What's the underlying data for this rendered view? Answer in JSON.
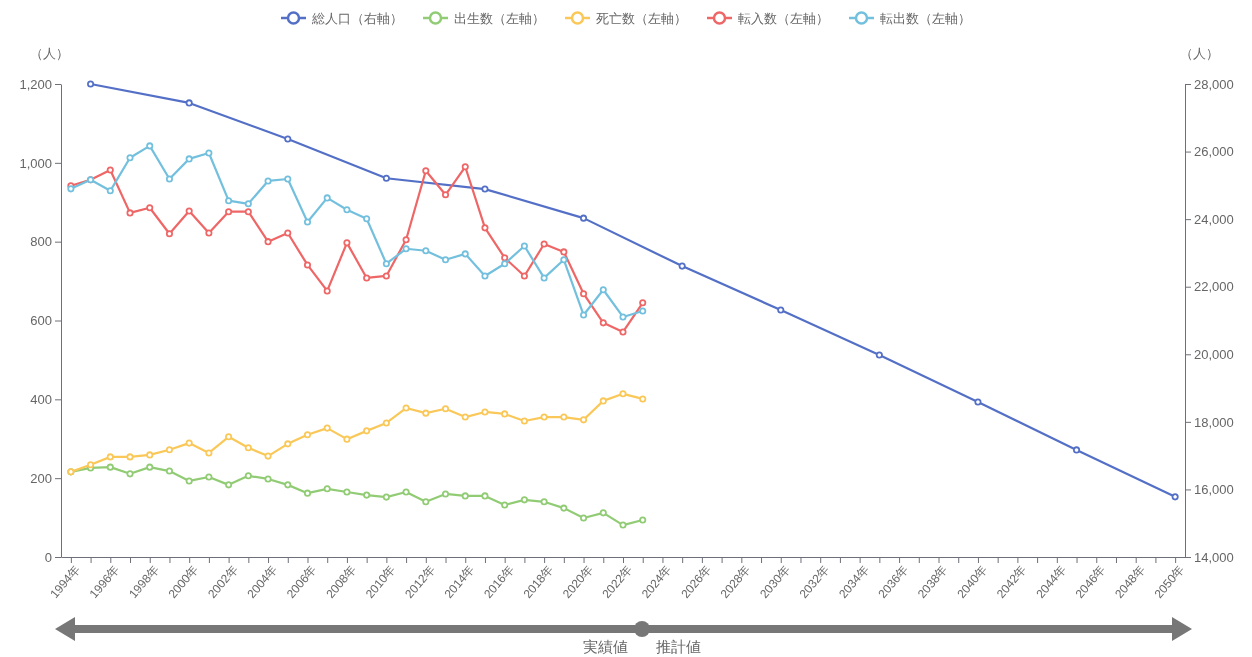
{
  "chart_data": {
    "type": "line",
    "ylabel": "（人）",
    "y2label": "（人）",
    "legend": "top",
    "marker": "circle",
    "line_style": "solid",
    "grid": false,
    "xlim": [
      1993.5,
      2050.5
    ],
    "xticks": [
      {
        "value": 1994,
        "label": "1994年"
      },
      {
        "value": 1995,
        "label": null
      },
      {
        "value": 1996,
        "label": "1996年"
      },
      {
        "value": 1997,
        "label": null
      },
      {
        "value": 1998,
        "label": "1998年"
      },
      {
        "value": 1999,
        "label": null
      },
      {
        "value": 2000,
        "label": "2000年"
      },
      {
        "value": 2001,
        "label": null
      },
      {
        "value": 2002,
        "label": "2002年"
      },
      {
        "value": 2003,
        "label": null
      },
      {
        "value": 2004,
        "label": "2004年"
      },
      {
        "value": 2005,
        "label": null
      },
      {
        "value": 2006,
        "label": "2006年"
      },
      {
        "value": 2007,
        "label": null
      },
      {
        "value": 2008,
        "label": "2008年"
      },
      {
        "value": 2009,
        "label": null
      },
      {
        "value": 2010,
        "label": "2010年"
      },
      {
        "value": 2011,
        "label": null
      },
      {
        "value": 2012,
        "label": "2012年"
      },
      {
        "value": 2013,
        "label": null
      },
      {
        "value": 2014,
        "label": "2014年"
      },
      {
        "value": 2015,
        "label": null
      },
      {
        "value": 2016,
        "label": "2016年"
      },
      {
        "value": 2017,
        "label": null
      },
      {
        "value": 2018,
        "label": "2018年"
      },
      {
        "value": 2019,
        "label": null
      },
      {
        "value": 2020,
        "label": "2020年"
      },
      {
        "value": 2021,
        "label": null
      },
      {
        "value": 2022,
        "label": "2022年"
      },
      {
        "value": 2023,
        "label": null
      },
      {
        "value": 2024,
        "label": "2024年"
      },
      {
        "value": 2025,
        "label": null
      },
      {
        "value": 2026,
        "label": "2026年"
      },
      {
        "value": 2027,
        "label": null
      },
      {
        "value": 2028,
        "label": "2028年"
      },
      {
        "value": 2029,
        "label": null
      },
      {
        "value": 2030,
        "label": "2030年"
      },
      {
        "value": 2031,
        "label": null
      },
      {
        "value": 2032,
        "label": "2032年"
      },
      {
        "value": 2033,
        "label": null
      },
      {
        "value": 2034,
        "label": "2034年"
      },
      {
        "value": 2035,
        "label": null
      },
      {
        "value": 2036,
        "label": "2036年"
      },
      {
        "value": 2037,
        "label": null
      },
      {
        "value": 2038,
        "label": "2038年"
      },
      {
        "value": 2039,
        "label": null
      },
      {
        "value": 2040,
        "label": "2040年"
      },
      {
        "value": 2041,
        "label": null
      },
      {
        "value": 2042,
        "label": "2042年"
      },
      {
        "value": 2043,
        "label": null
      },
      {
        "value": 2044,
        "label": "2044年"
      },
      {
        "value": 2045,
        "label": null
      },
      {
        "value": 2046,
        "label": "2046年"
      },
      {
        "value": 2047,
        "label": null
      },
      {
        "value": 2048,
        "label": "2048年"
      },
      {
        "value": 2049,
        "label": null
      },
      {
        "value": 2050,
        "label": "2050年"
      }
    ],
    "ylim": [
      0,
      1200
    ],
    "yticks": [
      0,
      200,
      400,
      600,
      800,
      {
        "value": 1000,
        "label": "1,000"
      },
      {
        "value": 1200,
        "label": "1,200"
      }
    ],
    "y2lim": [
      14000,
      28000
    ],
    "y2ticks": [
      {
        "value": 14000,
        "label": "14,000"
      },
      {
        "value": 16000,
        "label": "16,000"
      },
      {
        "value": 18000,
        "label": "18,000"
      },
      {
        "value": 20000,
        "label": "20,000"
      },
      {
        "value": 22000,
        "label": "22,000"
      },
      {
        "value": 24000,
        "label": "24,000"
      },
      {
        "value": 26000,
        "label": "26,000"
      },
      {
        "value": 28000,
        "label": "28,000"
      }
    ],
    "x": [
      1994,
      1995,
      1996,
      1997,
      1998,
      1999,
      2000,
      2001,
      2002,
      2003,
      2004,
      2005,
      2006,
      2007,
      2008,
      2009,
      2010,
      2011,
      2012,
      2013,
      2014,
      2015,
      2016,
      2017,
      2018,
      2019,
      2020,
      2021,
      2022,
      2023
    ],
    "series": [
      {
        "name": "総人口（右軸）",
        "color": "#5470c6",
        "axis": "y2",
        "x": [
          1995,
          2000,
          2005,
          2010,
          2015,
          2020,
          2025,
          2030,
          2035,
          2040,
          2045,
          2050
        ],
        "values": [
          28000,
          27440,
          26370,
          25210,
          24890,
          24030,
          22610,
          21310,
          19980,
          18590,
          17170,
          15780
        ]
      },
      {
        "name": "出生数（左軸）",
        "color": "#91cc75",
        "values": [
          216,
          226,
          228,
          211,
          228,
          218,
          193,
          203,
          183,
          206,
          198,
          183,
          162,
          173,
          165,
          157,
          152,
          165,
          140,
          160,
          155,
          155,
          132,
          145,
          140,
          124,
          99,
          112,
          81,
          94
        ]
      },
      {
        "name": "死亡数（左軸）",
        "color": "#fac858",
        "values": [
          216,
          234,
          254,
          254,
          259,
          272,
          289,
          264,
          305,
          277,
          256,
          287,
          310,
          327,
          299,
          320,
          340,
          378,
          365,
          376,
          355,
          368,
          363,
          345,
          355,
          355,
          348,
          396,
          414,
          401
        ]
      },
      {
        "name": "転入数（左軸）",
        "color": "#ee6666",
        "values": [
          942,
          957,
          982,
          873,
          886,
          820,
          878,
          822,
          876,
          876,
          800,
          822,
          741,
          675,
          797,
          708,
          713,
          805,
          980,
          919,
          990,
          835,
          759,
          713,
          794,
          774,
          668,
          594,
          571,
          645
        ]
      },
      {
        "name": "転出数（左軸）",
        "color": "#73c0de",
        "values": [
          934,
          957,
          929,
          1013,
          1043,
          959,
          1010,
          1025,
          904,
          896,
          954,
          959,
          850,
          911,
          881,
          858,
          744,
          782,
          777,
          754,
          769,
          713,
          744,
          789,
          708,
          754,
          614,
          678,
          609,
          624
        ]
      }
    ],
    "annotations": [
      "実績値",
      "推計値"
    ]
  }
}
